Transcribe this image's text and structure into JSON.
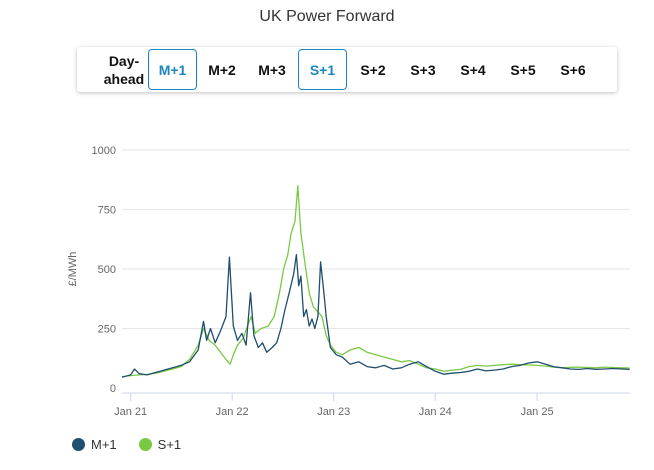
{
  "title": "UK Power Forward",
  "tabs": [
    {
      "id": "day-ahead",
      "label_lines": [
        "Day-",
        "ahead"
      ],
      "active": false
    },
    {
      "id": "m1",
      "label": "M+1",
      "active": true
    },
    {
      "id": "m2",
      "label": "M+2",
      "active": false
    },
    {
      "id": "m3",
      "label": "M+3",
      "active": false
    },
    {
      "id": "s1",
      "label": "S+1",
      "active": true
    },
    {
      "id": "s2",
      "label": "S+2",
      "active": false
    },
    {
      "id": "s3",
      "label": "S+3",
      "active": false
    },
    {
      "id": "s4",
      "label": "S+4",
      "active": false
    },
    {
      "id": "s5",
      "label": "S+5",
      "active": false
    },
    {
      "id": "s6",
      "label": "S+6",
      "active": false
    }
  ],
  "colors": {
    "m1": "#1f4e6e",
    "s1": "#7ac943",
    "active_tab": "#1a87c0"
  },
  "chart_data": {
    "type": "line",
    "ylabel": "£/MWh",
    "ylim": [
      0,
      1000
    ],
    "yticks": [
      0,
      250,
      500,
      750,
      1000
    ],
    "xlim": [
      "2020-12-01",
      "2025-12-01"
    ],
    "xticks": [
      {
        "date": "2021-01-01",
        "label": "Jan 21"
      },
      {
        "date": "2022-01-01",
        "label": "Jan 22"
      },
      {
        "date": "2023-01-01",
        "label": "Jan 23"
      },
      {
        "date": "2024-01-01",
        "label": "Jan 24"
      },
      {
        "date": "2025-01-01",
        "label": "Jan 25"
      }
    ],
    "grid": true,
    "legend_position": "bottom-left",
    "series": [
      {
        "name": "M+1",
        "color": "#1f4e6e",
        "points": [
          [
            "2020-12-01",
            45
          ],
          [
            "2021-01-01",
            55
          ],
          [
            "2021-01-15",
            80
          ],
          [
            "2021-02-01",
            60
          ],
          [
            "2021-03-01",
            55
          ],
          [
            "2021-04-01",
            65
          ],
          [
            "2021-05-01",
            75
          ],
          [
            "2021-06-01",
            85
          ],
          [
            "2021-07-01",
            95
          ],
          [
            "2021-08-01",
            110
          ],
          [
            "2021-09-01",
            160
          ],
          [
            "2021-09-20",
            280
          ],
          [
            "2021-10-01",
            200
          ],
          [
            "2021-10-15",
            250
          ],
          [
            "2021-11-01",
            190
          ],
          [
            "2021-11-20",
            240
          ],
          [
            "2021-12-10",
            300
          ],
          [
            "2021-12-22",
            550
          ],
          [
            "2022-01-05",
            260
          ],
          [
            "2022-01-20",
            200
          ],
          [
            "2022-02-05",
            230
          ],
          [
            "2022-02-20",
            180
          ],
          [
            "2022-03-08",
            400
          ],
          [
            "2022-03-20",
            220
          ],
          [
            "2022-04-05",
            170
          ],
          [
            "2022-04-20",
            190
          ],
          [
            "2022-05-05",
            150
          ],
          [
            "2022-05-25",
            170
          ],
          [
            "2022-06-10",
            190
          ],
          [
            "2022-06-25",
            250
          ],
          [
            "2022-07-10",
            330
          ],
          [
            "2022-07-25",
            400
          ],
          [
            "2022-08-10",
            480
          ],
          [
            "2022-08-20",
            560
          ],
          [
            "2022-08-28",
            430
          ],
          [
            "2022-09-05",
            470
          ],
          [
            "2022-09-15",
            300
          ],
          [
            "2022-09-25",
            330
          ],
          [
            "2022-10-05",
            260
          ],
          [
            "2022-10-15",
            290
          ],
          [
            "2022-10-25",
            250
          ],
          [
            "2022-11-05",
            300
          ],
          [
            "2022-11-15",
            530
          ],
          [
            "2022-11-25",
            420
          ],
          [
            "2022-12-05",
            300
          ],
          [
            "2022-12-20",
            170
          ],
          [
            "2023-01-10",
            140
          ],
          [
            "2023-02-01",
            130
          ],
          [
            "2023-03-01",
            100
          ],
          [
            "2023-04-01",
            110
          ],
          [
            "2023-05-01",
            90
          ],
          [
            "2023-06-01",
            85
          ],
          [
            "2023-07-01",
            95
          ],
          [
            "2023-08-01",
            80
          ],
          [
            "2023-09-01",
            85
          ],
          [
            "2023-10-01",
            100
          ],
          [
            "2023-11-01",
            110
          ],
          [
            "2023-12-01",
            90
          ],
          [
            "2024-01-01",
            70
          ],
          [
            "2024-02-01",
            58
          ],
          [
            "2024-03-01",
            62
          ],
          [
            "2024-04-01",
            65
          ],
          [
            "2024-05-01",
            70
          ],
          [
            "2024-06-01",
            80
          ],
          [
            "2024-07-01",
            72
          ],
          [
            "2024-08-01",
            75
          ],
          [
            "2024-09-01",
            80
          ],
          [
            "2024-10-01",
            90
          ],
          [
            "2024-11-01",
            95
          ],
          [
            "2024-12-01",
            105
          ],
          [
            "2025-01-01",
            110
          ],
          [
            "2025-02-01",
            100
          ],
          [
            "2025-03-01",
            90
          ],
          [
            "2025-04-01",
            85
          ],
          [
            "2025-05-01",
            80
          ],
          [
            "2025-06-01",
            78
          ],
          [
            "2025-07-01",
            82
          ],
          [
            "2025-08-01",
            78
          ],
          [
            "2025-09-01",
            80
          ],
          [
            "2025-10-01",
            82
          ],
          [
            "2025-11-01",
            80
          ],
          [
            "2025-11-30",
            78
          ]
        ]
      },
      {
        "name": "S+1",
        "color": "#7ac943",
        "points": [
          [
            "2020-12-01",
            48
          ],
          [
            "2021-01-01",
            52
          ],
          [
            "2021-02-01",
            55
          ],
          [
            "2021-03-01",
            57
          ],
          [
            "2021-04-01",
            62
          ],
          [
            "2021-05-01",
            70
          ],
          [
            "2021-06-01",
            80
          ],
          [
            "2021-07-01",
            90
          ],
          [
            "2021-08-01",
            120
          ],
          [
            "2021-09-01",
            180
          ],
          [
            "2021-09-20",
            250
          ],
          [
            "2021-10-10",
            200
          ],
          [
            "2021-11-01",
            180
          ],
          [
            "2021-11-20",
            150
          ],
          [
            "2021-12-10",
            120
          ],
          [
            "2021-12-25",
            100
          ],
          [
            "2022-01-05",
            140
          ],
          [
            "2022-01-20",
            180
          ],
          [
            "2022-02-10",
            210
          ],
          [
            "2022-02-25",
            260
          ],
          [
            "2022-03-10",
            300
          ],
          [
            "2022-03-25",
            230
          ],
          [
            "2022-04-15",
            250
          ],
          [
            "2022-05-10",
            260
          ],
          [
            "2022-06-01",
            300
          ],
          [
            "2022-06-20",
            400
          ],
          [
            "2022-07-05",
            500
          ],
          [
            "2022-07-20",
            560
          ],
          [
            "2022-08-01",
            650
          ],
          [
            "2022-08-15",
            700
          ],
          [
            "2022-08-25",
            850
          ],
          [
            "2022-09-05",
            650
          ],
          [
            "2022-09-20",
            520
          ],
          [
            "2022-10-05",
            400
          ],
          [
            "2022-10-20",
            340
          ],
          [
            "2022-11-05",
            320
          ],
          [
            "2022-11-20",
            300
          ],
          [
            "2022-12-05",
            220
          ],
          [
            "2022-12-20",
            180
          ],
          [
            "2023-01-10",
            150
          ],
          [
            "2023-02-01",
            140
          ],
          [
            "2023-03-01",
            160
          ],
          [
            "2023-04-01",
            170
          ],
          [
            "2023-05-01",
            150
          ],
          [
            "2023-06-01",
            140
          ],
          [
            "2023-07-01",
            130
          ],
          [
            "2023-08-01",
            120
          ],
          [
            "2023-09-01",
            110
          ],
          [
            "2023-10-01",
            115
          ],
          [
            "2023-11-01",
            100
          ],
          [
            "2023-12-01",
            85
          ],
          [
            "2024-01-01",
            80
          ],
          [
            "2024-02-01",
            70
          ],
          [
            "2024-03-01",
            75
          ],
          [
            "2024-04-01",
            78
          ],
          [
            "2024-05-01",
            90
          ],
          [
            "2024-06-01",
            95
          ],
          [
            "2024-07-01",
            92
          ],
          [
            "2024-08-01",
            95
          ],
          [
            "2024-09-01",
            98
          ],
          [
            "2024-10-01",
            100
          ],
          [
            "2024-11-01",
            98
          ],
          [
            "2024-12-01",
            97
          ],
          [
            "2025-01-01",
            95
          ],
          [
            "2025-02-01",
            92
          ],
          [
            "2025-03-01",
            88
          ],
          [
            "2025-04-01",
            85
          ],
          [
            "2025-05-01",
            87
          ],
          [
            "2025-06-01",
            88
          ],
          [
            "2025-07-01",
            86
          ],
          [
            "2025-08-01",
            85
          ],
          [
            "2025-09-01",
            88
          ],
          [
            "2025-10-01",
            86
          ],
          [
            "2025-11-01",
            85
          ],
          [
            "2025-11-30",
            84
          ]
        ]
      }
    ]
  }
}
